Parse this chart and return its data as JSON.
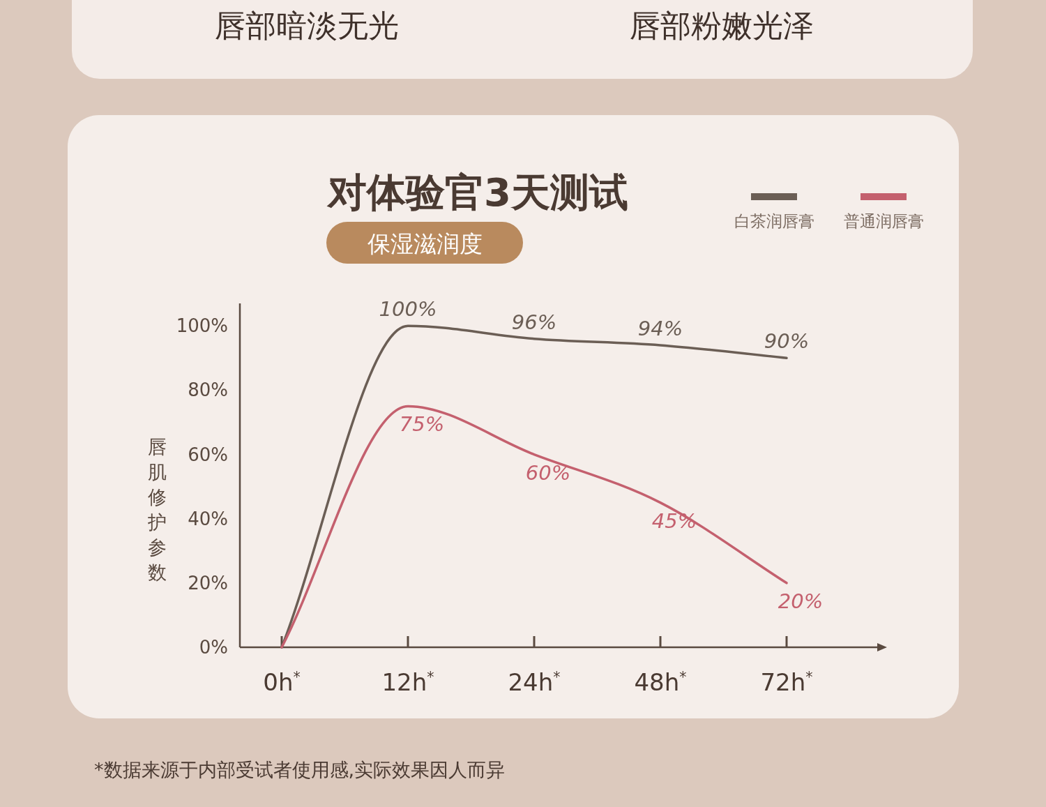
{
  "chart_data": {
    "type": "line",
    "title": "对体验官3天测试",
    "subtitle": "保湿滋润度",
    "ylabel": "唇肌修护参数",
    "categories": [
      "0h$^{*}$",
      "12h$^{*}$",
      "24h$^{*}$",
      "48h$^{*}$",
      "72h$^{*}$"
    ],
    "series": [
      {
        "name": "白茶润唇膏",
        "color": "#6b5e55",
        "values": [
          0,
          100,
          96,
          94,
          90
        ],
        "value_labels": [
          null,
          "100%",
          "96%",
          "94%",
          "90%"
        ]
      },
      {
        "name": "普通润唇膏",
        "color": "#c4606e",
        "values": [
          0,
          75,
          60,
          45,
          20
        ],
        "value_labels": [
          null,
          "75%",
          "60%",
          "45%",
          "20%"
        ]
      }
    ],
    "ylim": [
      0,
      107
    ],
    "yticks": [
      {
        "value": 0,
        "label": "0%"
      },
      {
        "value": 20,
        "label": "20%"
      },
      {
        "value": 40,
        "label": "40%"
      },
      {
        "value": 60,
        "label": "60%"
      },
      {
        "value": 80,
        "label": "80%"
      },
      {
        "value": 100,
        "label": "100%"
      }
    ],
    "legend": "top right",
    "marker": "none",
    "line_style": "solid",
    "annotations": [
      "唇部暗淡无光",
      "唇部粉嫩光泽",
      "*数据来源于内部受试者使用感,实际效果因人而异"
    ]
  }
}
